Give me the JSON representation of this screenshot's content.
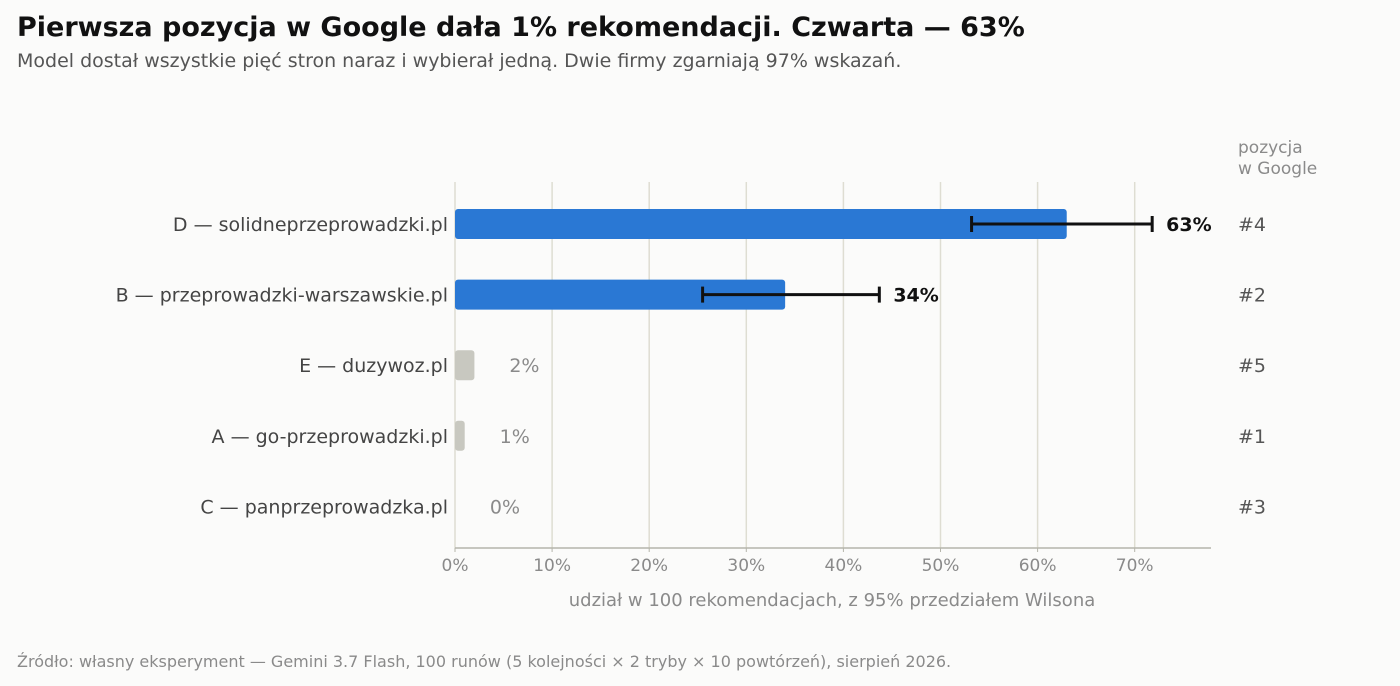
{
  "title": "Pierwsza pozycja w Google dała 1% rekomendacji. Czwarta — 63%",
  "subtitle": "Model dostał wszystkie pięć stron naraz i wybierał jedną. Dwie firmy zgarniają 97% wskazań.",
  "source": "Źródło: własny eksperyment — Gemini 3.7 Flash, 100 runów (5 kolejności × 2 tryby × 10 powtórzeń), sierpień 2026.",
  "colors": {
    "highlight": "#2a78d4",
    "muted": "#c8c8c0",
    "grid": "#deddd2",
    "axis": "#b5b5ab",
    "errorbar": "#111111"
  },
  "chart_data": {
    "type": "bar",
    "orientation": "horizontal",
    "categories": [
      "D — solidneprzeprowadzki.pl",
      "B — przeprowadzki-warszawskie.pl",
      "E — duzywoz.pl",
      "A — go-przeprowadzki.pl",
      "C — panprzeprowadzka.pl"
    ],
    "values": [
      63,
      34,
      2,
      1,
      0
    ],
    "value_labels": [
      "63%",
      "34%",
      "2%",
      "1%",
      "0%"
    ],
    "ci_low": [
      53.2,
      25.5,
      null,
      null,
      null
    ],
    "ci_high": [
      71.8,
      43.7,
      null,
      null,
      null
    ],
    "highlighted": [
      true,
      true,
      false,
      false,
      false
    ],
    "google_position_header": [
      "pozycja",
      "w Google"
    ],
    "google_position": [
      "#4",
      "#2",
      "#5",
      "#1",
      "#3"
    ],
    "xlabel": "udział w 100 rekomendacjach, z 95% przedziałem Wilsona",
    "xticks": [
      0,
      10,
      20,
      30,
      40,
      50,
      60,
      70
    ],
    "xtick_labels": [
      "0%",
      "10%",
      "20%",
      "30%",
      "40%",
      "50%",
      "60%",
      "70%"
    ],
    "xlim": [
      0,
      78
    ],
    "grid": "vertical"
  }
}
